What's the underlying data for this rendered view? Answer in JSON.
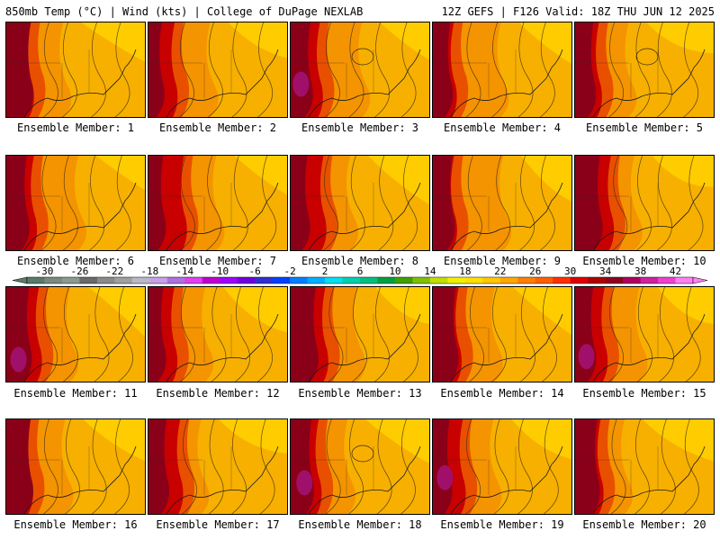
{
  "header": {
    "left": "850mb Temp (°C) | Wind (kts) | College of DuPage NEXLAB",
    "right": "12Z GEFS | F126 Valid: 18Z THU JUN 12 2025"
  },
  "label_prefix": "Ensemble Member:",
  "members": [
    {
      "label": "Ensemble Member: 1",
      "member": 1
    },
    {
      "label": "Ensemble Member: 2",
      "member": 2
    },
    {
      "label": "Ensemble Member: 3",
      "member": 3
    },
    {
      "label": "Ensemble Member: 4",
      "member": 4
    },
    {
      "label": "Ensemble Member: 5",
      "member": 5
    },
    {
      "label": "Ensemble Member: 6",
      "member": 6
    },
    {
      "label": "Ensemble Member: 7",
      "member": 7
    },
    {
      "label": "Ensemble Member: 8",
      "member": 8
    },
    {
      "label": "Ensemble Member: 9",
      "member": 9
    },
    {
      "label": "Ensemble Member: 10",
      "member": 10
    },
    {
      "label": "Ensemble Member: 11",
      "member": 11
    },
    {
      "label": "Ensemble Member: 12",
      "member": 12
    },
    {
      "label": "Ensemble Member: 13",
      "member": 13
    },
    {
      "label": "Ensemble Member: 14",
      "member": 14
    },
    {
      "label": "Ensemble Member: 15",
      "member": 15
    },
    {
      "label": "Ensemble Member: 16",
      "member": 16
    },
    {
      "label": "Ensemble Member: 17",
      "member": 17
    },
    {
      "label": "Ensemble Member: 18",
      "member": 18
    },
    {
      "label": "Ensemble Member: 19",
      "member": 19
    },
    {
      "label": "Ensemble Member: 20",
      "member": 20
    }
  ],
  "colorbar": {
    "tick_labels": [
      "-30",
      "-26",
      "-22",
      "-18",
      "-14",
      "-10",
      "-6",
      "-2",
      "2",
      "6",
      "10",
      "14",
      "18",
      "22",
      "26",
      "30",
      "34",
      "38",
      "42"
    ],
    "min": -32,
    "max": 44,
    "step": 2,
    "colors": [
      "#5a7a6a",
      "#7a8a80",
      "#8a9a90",
      "#6a6a6a",
      "#8a8a8a",
      "#a0a0a0",
      "#b8b8c8",
      "#c9a0e8",
      "#b070e0",
      "#e040f0",
      "#c000d0",
      "#a000ff",
      "#7000e0",
      "#3030d0",
      "#0040ff",
      "#0080ff",
      "#00b0ff",
      "#00e0f0",
      "#00d0b0",
      "#00c080",
      "#00a040",
      "#40a000",
      "#80c000",
      "#c0e000",
      "#f0f000",
      "#ffe000",
      "#ffc800",
      "#ffa800",
      "#ff8000",
      "#ff6000",
      "#ff3000",
      "#e00000",
      "#b00000",
      "#900020",
      "#b00060",
      "#d020a0",
      "#f040d0",
      "#ff80f0"
    ]
  }
}
